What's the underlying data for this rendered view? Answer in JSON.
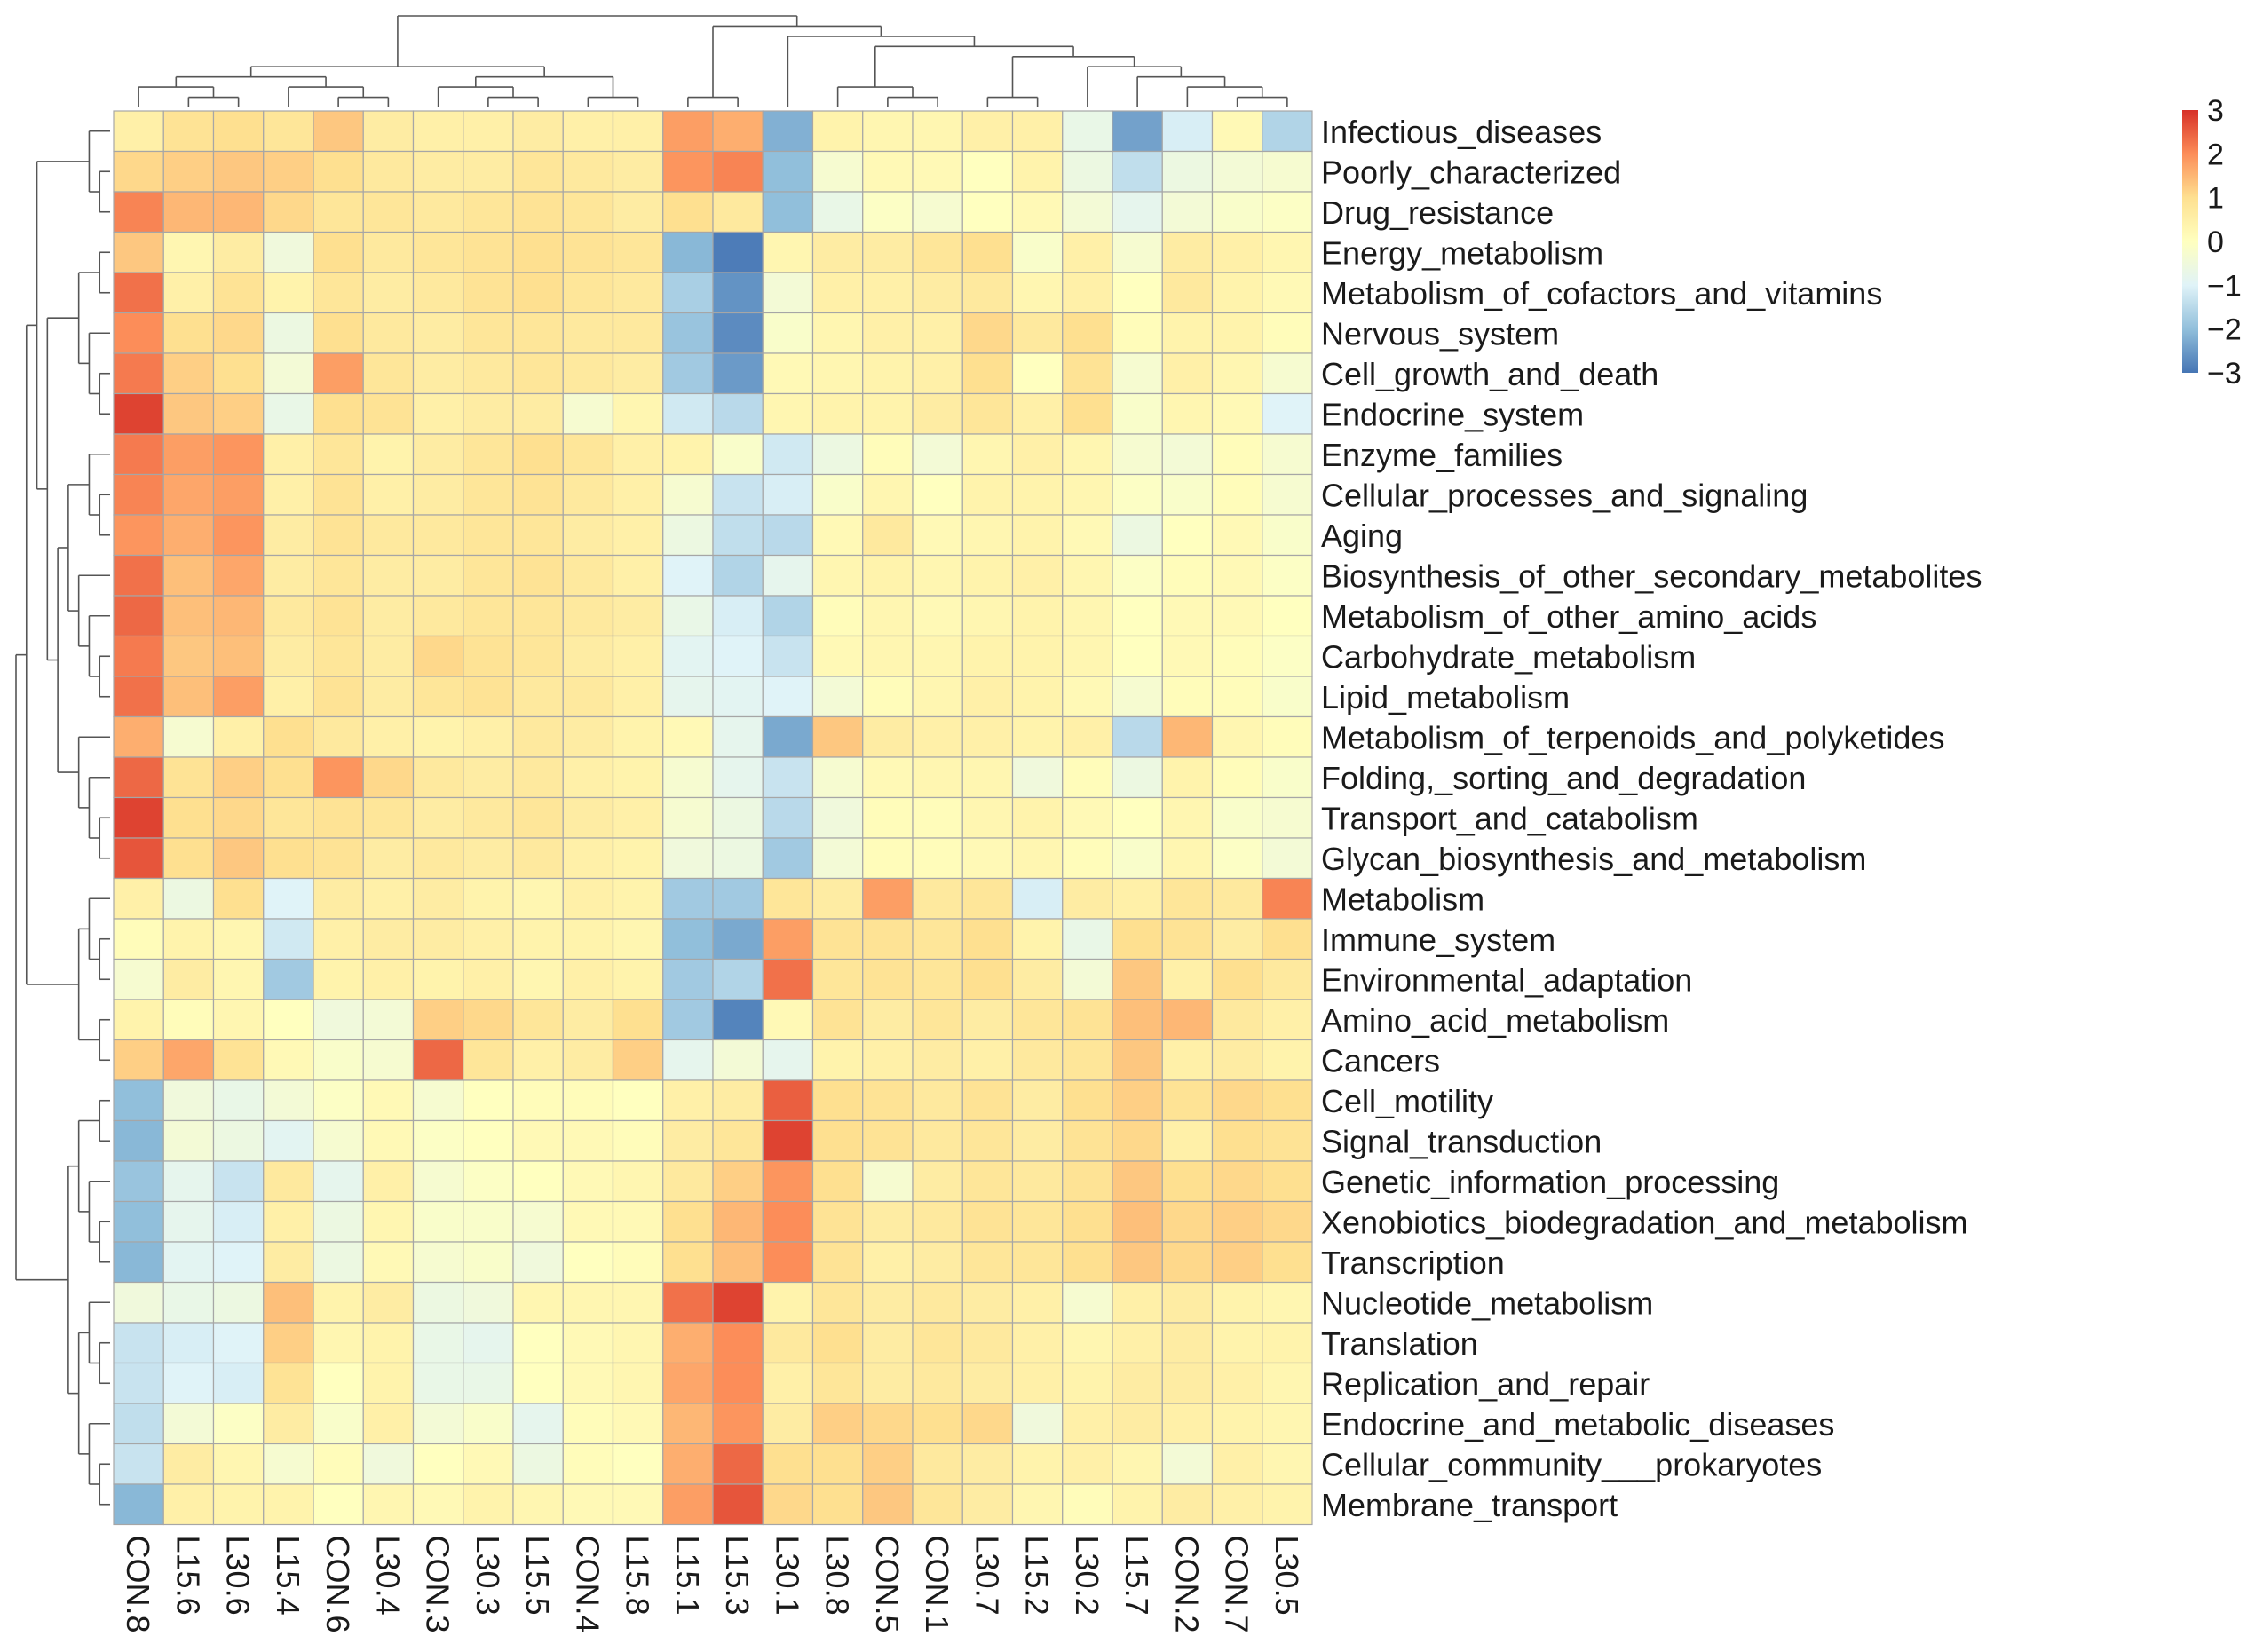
{
  "chart_data": {
    "type": "heatmap",
    "title": "",
    "color_scale": {
      "min": -3,
      "max": 3,
      "ticks": [
        3,
        2,
        1,
        0,
        -1,
        -2,
        -3
      ],
      "colors": [
        "#4575b4",
        "#91bfdb",
        "#e0f3f8",
        "#ffffbf",
        "#fee090",
        "#fc8d59",
        "#d73027"
      ]
    },
    "legend_position": "top-right",
    "columns": [
      "CON.8",
      "L15.6",
      "L30.6",
      "L15.4",
      "CON.6",
      "L30.4",
      "CON.3",
      "L30.3",
      "L15.5",
      "CON.4",
      "L15.8",
      "L15.1",
      "L15.3",
      "L30.1",
      "L30.8",
      "CON.5",
      "CON.1",
      "L30.7",
      "L15.2",
      "L30.2",
      "L15.7",
      "CON.2",
      "CON.7",
      "L30.5"
    ],
    "rows": [
      {
        "name": "Infectious_diseases",
        "values": [
          0.5,
          0.9,
          1.0,
          0.8,
          1.3,
          0.6,
          0.5,
          0.5,
          0.6,
          0.5,
          0.5,
          1.8,
          1.6,
          -2.2,
          0.4,
          0.3,
          0.3,
          0.5,
          0.5,
          -0.7,
          -2.4,
          -1.1,
          0.2,
          -1.6
        ]
      },
      {
        "name": "Poorly_characterized",
        "values": [
          1.1,
          1.2,
          1.3,
          1.2,
          1.0,
          0.7,
          0.6,
          0.6,
          0.8,
          0.7,
          0.6,
          1.9,
          2.1,
          -2.0,
          -0.3,
          0.2,
          0.2,
          0.0,
          0.4,
          -0.6,
          -1.4,
          -0.6,
          -0.4,
          -0.3
        ]
      },
      {
        "name": "Drug_resistance",
        "values": [
          2.1,
          1.5,
          1.5,
          1.1,
          0.8,
          0.8,
          0.7,
          0.8,
          0.9,
          0.8,
          0.6,
          1.0,
          0.7,
          -2.0,
          -0.7,
          -0.1,
          -0.3,
          0.0,
          0.2,
          -0.4,
          -0.8,
          -0.4,
          -0.2,
          -0.1
        ]
      },
      {
        "name": "Energy_metabolism",
        "values": [
          1.3,
          0.3,
          0.6,
          -0.5,
          1.0,
          0.7,
          0.8,
          0.9,
          1.0,
          0.9,
          0.8,
          -2.1,
          -2.9,
          0.3,
          0.6,
          0.6,
          0.8,
          1.0,
          -0.2,
          0.5,
          -0.3,
          0.6,
          0.5,
          0.3
        ]
      },
      {
        "name": "Metabolism_of_cofactors_and_vitamins",
        "values": [
          2.3,
          0.5,
          0.9,
          0.4,
          0.8,
          0.6,
          0.7,
          0.9,
          1.0,
          0.8,
          0.7,
          -1.7,
          -2.6,
          -0.4,
          0.5,
          0.5,
          0.6,
          0.7,
          0.3,
          0.5,
          0.0,
          0.7,
          0.4,
          0.2
        ]
      },
      {
        "name": "Nervous_system",
        "values": [
          2.0,
          1.0,
          1.1,
          -0.6,
          1.0,
          0.7,
          0.6,
          0.8,
          0.8,
          0.7,
          0.7,
          -1.9,
          -2.7,
          -0.2,
          0.3,
          0.5,
          0.5,
          1.1,
          0.7,
          1.0,
          0.1,
          0.4,
          0.4,
          0.1
        ]
      },
      {
        "name": "Cell_growth_and_death",
        "values": [
          2.2,
          1.2,
          1.0,
          -0.4,
          1.8,
          0.8,
          0.6,
          0.7,
          0.8,
          0.7,
          0.6,
          -1.8,
          -2.5,
          0.2,
          0.3,
          0.4,
          0.5,
          1.0,
          0.0,
          0.9,
          -0.3,
          0.5,
          0.3,
          -0.3
        ]
      },
      {
        "name": "Endocrine_system",
        "values": [
          2.8,
          1.3,
          1.2,
          -0.7,
          1.0,
          0.9,
          0.5,
          0.6,
          0.6,
          -0.3,
          0.3,
          -1.2,
          -1.5,
          0.3,
          0.4,
          0.4,
          0.6,
          0.8,
          0.5,
          1.0,
          -0.2,
          0.3,
          0.2,
          -1.0
        ]
      },
      {
        "name": "Enzyme_families",
        "values": [
          2.2,
          1.8,
          1.9,
          0.5,
          0.8,
          0.4,
          0.6,
          0.8,
          1.0,
          0.8,
          0.5,
          0.4,
          -0.2,
          -1.2,
          -0.6,
          0.1,
          -0.4,
          0.3,
          0.5,
          0.3,
          -0.3,
          -0.4,
          0.1,
          -0.3
        ]
      },
      {
        "name": "Cellular_processes_and_signaling",
        "values": [
          2.1,
          1.7,
          1.8,
          0.5,
          0.9,
          0.5,
          0.6,
          0.8,
          0.9,
          0.7,
          0.5,
          -0.3,
          -1.3,
          -1.1,
          -0.2,
          0.3,
          0.0,
          0.4,
          0.4,
          0.3,
          -0.1,
          -0.2,
          0.1,
          -0.3
        ]
      },
      {
        "name": "Aging",
        "values": [
          1.9,
          1.6,
          1.9,
          0.6,
          0.9,
          0.7,
          0.7,
          0.8,
          0.8,
          0.6,
          0.5,
          -0.6,
          -1.4,
          -1.5,
          0.2,
          0.7,
          0.2,
          0.3,
          0.4,
          0.2,
          -0.6,
          0.0,
          0.2,
          -0.2
        ]
      },
      {
        "name": "Biosynthesis_of_other_secondary_metabolites",
        "values": [
          2.3,
          1.4,
          1.7,
          0.6,
          0.8,
          0.6,
          0.6,
          0.8,
          0.9,
          0.7,
          0.5,
          -1.0,
          -1.6,
          -0.8,
          0.3,
          0.4,
          0.3,
          0.4,
          0.5,
          0.3,
          -0.1,
          0.1,
          0.2,
          -0.1
        ]
      },
      {
        "name": "Metabolism_of_other_amino_acids",
        "values": [
          2.4,
          1.4,
          1.5,
          0.7,
          0.9,
          0.6,
          0.7,
          0.8,
          0.8,
          0.7,
          0.6,
          -0.7,
          -1.1,
          -1.6,
          0.1,
          0.3,
          0.2,
          0.3,
          0.4,
          0.3,
          0.0,
          0.2,
          0.2,
          0.0
        ]
      },
      {
        "name": "Carbohydrate_metabolism",
        "values": [
          2.2,
          1.3,
          1.4,
          0.6,
          0.8,
          0.6,
          1.1,
          0.9,
          0.8,
          0.6,
          0.5,
          -0.9,
          -1.0,
          -1.3,
          0.2,
          0.3,
          0.3,
          0.4,
          0.4,
          0.3,
          0.0,
          0.2,
          0.1,
          -0.1
        ]
      },
      {
        "name": "Lipid_metabolism",
        "values": [
          2.3,
          1.4,
          1.8,
          0.5,
          0.9,
          0.6,
          0.8,
          0.9,
          0.7,
          0.7,
          0.5,
          -0.8,
          -0.9,
          -1.0,
          -0.4,
          0.1,
          0.3,
          0.5,
          0.4,
          0.2,
          -0.3,
          0.1,
          0.1,
          -0.2
        ]
      },
      {
        "name": "Metabolism_of_terpenoids_and_polyketides",
        "values": [
          1.6,
          -0.3,
          0.5,
          1.0,
          0.7,
          0.5,
          0.4,
          0.5,
          0.7,
          0.6,
          0.4,
          0.2,
          -0.8,
          -2.3,
          1.3,
          0.6,
          0.5,
          0.5,
          0.4,
          0.5,
          -1.5,
          1.5,
          0.3,
          0.1
        ]
      },
      {
        "name": "Folding,_sorting_and_degradation",
        "values": [
          2.4,
          0.9,
          1.2,
          1.0,
          1.9,
          1.1,
          0.7,
          0.6,
          0.7,
          0.5,
          0.4,
          -0.3,
          -0.8,
          -1.3,
          -0.3,
          0.2,
          0.3,
          0.3,
          -0.5,
          0.1,
          -0.6,
          0.4,
          0.1,
          -0.2
        ]
      },
      {
        "name": "Transport_and_catabolism",
        "values": [
          2.8,
          1.0,
          1.1,
          0.8,
          0.9,
          0.8,
          0.6,
          0.7,
          0.8,
          0.6,
          0.5,
          -0.3,
          -0.6,
          -1.5,
          -0.5,
          0.1,
          0.1,
          0.3,
          0.4,
          0.2,
          0.0,
          0.3,
          -0.2,
          -0.3
        ]
      },
      {
        "name": "Glycan_biosynthesis_and_metabolism",
        "values": [
          2.6,
          1.0,
          1.3,
          1.0,
          0.9,
          0.6,
          0.7,
          0.6,
          0.7,
          0.5,
          0.4,
          -0.5,
          -0.6,
          -1.8,
          -0.4,
          0.1,
          0.1,
          0.2,
          0.3,
          0.1,
          -0.2,
          0.3,
          -0.1,
          -0.4
        ]
      },
      {
        "name": "Metabolism",
        "values": [
          0.5,
          -0.6,
          1.0,
          -1.0,
          0.6,
          0.5,
          0.6,
          0.4,
          0.3,
          0.5,
          0.4,
          -1.8,
          -1.8,
          0.8,
          0.6,
          1.8,
          0.7,
          0.8,
          -1.1,
          0.6,
          0.5,
          0.8,
          0.7,
          2.1
        ]
      },
      {
        "name": "Immune_system",
        "values": [
          0.1,
          0.4,
          0.3,
          -1.2,
          0.5,
          0.6,
          0.6,
          0.5,
          0.4,
          0.4,
          0.3,
          -2.0,
          -2.3,
          1.8,
          0.9,
          0.9,
          0.8,
          1.0,
          0.4,
          -0.7,
          1.0,
          0.9,
          0.6,
          1.0
        ]
      },
      {
        "name": "Environmental_adaptation",
        "values": [
          -0.3,
          0.6,
          0.3,
          -1.8,
          0.4,
          0.5,
          0.4,
          0.5,
          0.3,
          0.5,
          0.4,
          -1.8,
          -1.6,
          2.3,
          0.8,
          0.9,
          0.8,
          1.0,
          0.6,
          -0.4,
          1.3,
          0.5,
          1.0,
          0.7
        ]
      },
      {
        "name": "Amino_acid_metabolism",
        "values": [
          0.4,
          0.1,
          0.3,
          0.0,
          -0.5,
          -0.4,
          1.2,
          1.1,
          0.8,
          0.6,
          1.0,
          -1.8,
          -2.8,
          0.2,
          0.9,
          0.6,
          0.8,
          0.6,
          0.8,
          0.9,
          1.4,
          1.5,
          0.7,
          0.5
        ]
      },
      {
        "name": "Cancers",
        "values": [
          1.2,
          1.7,
          0.9,
          0.2,
          -0.2,
          -0.3,
          2.4,
          0.8,
          0.5,
          0.6,
          1.2,
          -0.8,
          -0.4,
          -0.8,
          0.4,
          0.5,
          0.6,
          0.5,
          0.7,
          0.8,
          1.3,
          0.5,
          0.6,
          0.4
        ]
      },
      {
        "name": "Cell_motility",
        "values": [
          -2.0,
          -0.5,
          -0.7,
          -0.4,
          -0.1,
          0.2,
          -0.3,
          0.0,
          0.1,
          0.1,
          0.0,
          0.5,
          0.6,
          2.5,
          1.0,
          0.9,
          0.7,
          0.9,
          0.6,
          1.0,
          1.2,
          0.9,
          1.1,
          1.0
        ]
      },
      {
        "name": "Signal_transduction",
        "values": [
          -2.1,
          -0.4,
          -0.6,
          -0.9,
          -0.3,
          0.2,
          -0.1,
          0.0,
          0.2,
          0.2,
          0.1,
          0.6,
          0.8,
          2.8,
          1.0,
          0.9,
          0.7,
          0.8,
          0.6,
          0.9,
          1.1,
          0.5,
          1.0,
          0.9
        ]
      },
      {
        "name": "Genetic_information_processing",
        "values": [
          -1.9,
          -0.8,
          -1.3,
          0.7,
          -0.8,
          0.5,
          -0.3,
          -0.1,
          0.0,
          0.2,
          0.3,
          0.7,
          1.2,
          1.9,
          1.0,
          -0.3,
          0.6,
          0.8,
          0.7,
          0.9,
          1.3,
          1.0,
          1.1,
          1.0
        ]
      },
      {
        "name": "Xenobiotics_biodegradation_and_metabolism",
        "values": [
          -2.0,
          -0.8,
          -1.1,
          0.5,
          -0.6,
          0.3,
          -0.2,
          -0.2,
          -0.3,
          0.2,
          0.2,
          1.0,
          1.5,
          2.0,
          0.9,
          0.6,
          0.7,
          0.9,
          0.8,
          1.0,
          1.4,
          1.1,
          1.2,
          1.1
        ]
      },
      {
        "name": "Transcription",
        "values": [
          -2.1,
          -0.9,
          -1.0,
          0.6,
          -0.6,
          0.2,
          -0.3,
          -0.2,
          -0.5,
          0.0,
          0.1,
          1.0,
          1.4,
          2.0,
          0.9,
          0.5,
          0.6,
          0.8,
          0.8,
          1.0,
          1.3,
          1.1,
          1.2,
          1.0
        ]
      },
      {
        "name": "Nucleotide_metabolism",
        "values": [
          -0.5,
          -0.7,
          -0.6,
          1.4,
          0.4,
          0.6,
          -0.6,
          -0.5,
          0.3,
          0.3,
          0.3,
          2.3,
          2.8,
          0.4,
          0.8,
          0.6,
          0.7,
          0.6,
          0.5,
          -0.3,
          0.5,
          0.6,
          0.4,
          0.3
        ]
      },
      {
        "name": "Translation",
        "values": [
          -1.3,
          -1.1,
          -1.0,
          1.2,
          0.3,
          0.4,
          -0.7,
          -0.8,
          0.0,
          0.2,
          0.3,
          1.6,
          2.0,
          0.7,
          1.0,
          0.6,
          0.8,
          0.7,
          0.5,
          0.3,
          0.5,
          0.6,
          0.4,
          0.4
        ]
      },
      {
        "name": "Replication_and_repair",
        "values": [
          -1.3,
          -1.0,
          -1.1,
          0.9,
          0.0,
          0.4,
          -0.7,
          -0.7,
          0.0,
          0.2,
          0.3,
          1.7,
          2.0,
          0.5,
          0.8,
          0.6,
          0.7,
          0.6,
          0.5,
          0.4,
          0.6,
          0.6,
          0.5,
          0.3
        ]
      },
      {
        "name": "Endocrine_and_metabolic_diseases",
        "values": [
          -1.4,
          -0.4,
          -0.1,
          0.6,
          -0.2,
          0.5,
          -0.4,
          -0.2,
          -0.8,
          0.1,
          0.2,
          1.5,
          1.9,
          0.6,
          1.2,
          1.1,
          1.0,
          1.1,
          -0.5,
          0.5,
          0.6,
          0.5,
          0.4,
          0.3
        ]
      },
      {
        "name": "Cellular_community___prokaryotes",
        "values": [
          -1.3,
          0.6,
          0.3,
          -0.3,
          0.1,
          -0.5,
          0.0,
          0.2,
          -0.6,
          0.1,
          0.0,
          1.6,
          2.4,
          1.0,
          1.0,
          1.2,
          0.7,
          0.6,
          0.4,
          0.5,
          0.3,
          -0.4,
          0.5,
          0.3
        ]
      },
      {
        "name": "Membrane_transport",
        "values": [
          -2.1,
          0.5,
          0.4,
          0.4,
          0.0,
          0.3,
          0.2,
          0.4,
          0.3,
          0.2,
          0.2,
          1.8,
          2.6,
          1.1,
          1.0,
          1.3,
          0.8,
          0.6,
          0.3,
          0.1,
          0.4,
          0.6,
          0.5,
          0.4
        ]
      }
    ]
  }
}
